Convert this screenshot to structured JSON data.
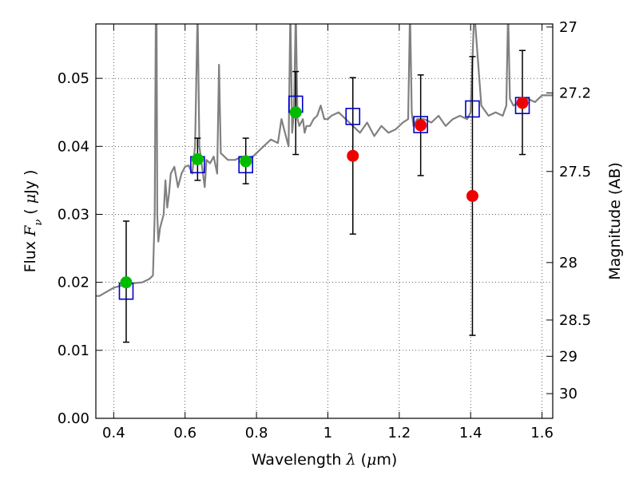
{
  "chart_data": {
    "type": "scatter",
    "title": "",
    "xlabel": {
      "pre": "Wavelength ",
      "sym": "λ",
      "mid": " (",
      "mu": "μ",
      "post": "m)"
    },
    "ylabel": {
      "pre": "Flux ",
      "sym": "F",
      "sub": "ν",
      "mid": " ( ",
      "mu": "μ",
      "post": "Jy )"
    },
    "y2label": "Magnitude (AB)",
    "xlim": [
      0.35,
      1.63
    ],
    "ylim": [
      0.0,
      0.058
    ],
    "grid": true,
    "x_ticks": [
      {
        "value": 0.4,
        "label": "0.4"
      },
      {
        "value": 0.6,
        "label": "0.6"
      },
      {
        "value": 0.8,
        "label": "0.8"
      },
      {
        "value": 1.0,
        "label": "1"
      },
      {
        "value": 1.2,
        "label": "1.2"
      },
      {
        "value": 1.4,
        "label": "1.4"
      },
      {
        "value": 1.6,
        "label": "1.6"
      }
    ],
    "y_ticks": [
      {
        "value": 0.0,
        "label": "0.00"
      },
      {
        "value": 0.01,
        "label": "0.01"
      },
      {
        "value": 0.02,
        "label": "0.02"
      },
      {
        "value": 0.03,
        "label": "0.03"
      },
      {
        "value": 0.04,
        "label": "0.04"
      },
      {
        "value": 0.05,
        "label": "0.05"
      }
    ],
    "y2_ticks": [
      {
        "mag": 27,
        "label": "27"
      },
      {
        "mag": 27.2,
        "label": "27.2"
      },
      {
        "mag": 27.5,
        "label": "27.5"
      },
      {
        "mag": 28,
        "label": "28"
      },
      {
        "mag": 28.5,
        "label": "28.5"
      },
      {
        "mag": 29,
        "label": "29"
      },
      {
        "mag": 30,
        "label": "30"
      }
    ],
    "sed_model": {
      "color": "#808080",
      "x": [
        0.35,
        0.36,
        0.38,
        0.4,
        0.42,
        0.44,
        0.46,
        0.48,
        0.5,
        0.51,
        0.515,
        0.518,
        0.52,
        0.522,
        0.525,
        0.53,
        0.54,
        0.545,
        0.55,
        0.555,
        0.56,
        0.57,
        0.58,
        0.59,
        0.6,
        0.61,
        0.62,
        0.628,
        0.635,
        0.64,
        0.65,
        0.655,
        0.66,
        0.67,
        0.68,
        0.69,
        0.695,
        0.7,
        0.72,
        0.74,
        0.76,
        0.78,
        0.8,
        0.82,
        0.84,
        0.86,
        0.87,
        0.88,
        0.89,
        0.895,
        0.9,
        0.905,
        0.91,
        0.915,
        0.92,
        0.93,
        0.935,
        0.94,
        0.95,
        0.96,
        0.97,
        0.98,
        0.99,
        1.0,
        1.01,
        1.03,
        1.05,
        1.07,
        1.09,
        1.11,
        1.13,
        1.15,
        1.17,
        1.19,
        1.21,
        1.225,
        1.23,
        1.235,
        1.24,
        1.25,
        1.27,
        1.29,
        1.31,
        1.33,
        1.35,
        1.37,
        1.39,
        1.4,
        1.41,
        1.43,
        1.45,
        1.47,
        1.49,
        1.5,
        1.505,
        1.51,
        1.52,
        1.54,
        1.56,
        1.58,
        1.6,
        1.63
      ],
      "y": [
        0.018,
        0.018,
        0.0186,
        0.0192,
        0.0195,
        0.0198,
        0.0199,
        0.02,
        0.0205,
        0.021,
        0.03,
        0.06,
        0.06,
        0.03,
        0.026,
        0.028,
        0.03,
        0.035,
        0.031,
        0.033,
        0.036,
        0.037,
        0.034,
        0.036,
        0.037,
        0.0372,
        0.036,
        0.04,
        0.06,
        0.04,
        0.036,
        0.034,
        0.038,
        0.0375,
        0.0385,
        0.036,
        0.052,
        0.039,
        0.038,
        0.038,
        0.0385,
        0.038,
        0.039,
        0.04,
        0.041,
        0.0405,
        0.044,
        0.042,
        0.04,
        0.06,
        0.042,
        0.045,
        0.06,
        0.044,
        0.043,
        0.044,
        0.042,
        0.043,
        0.043,
        0.044,
        0.0445,
        0.046,
        0.044,
        0.044,
        0.0445,
        0.045,
        0.044,
        0.043,
        0.042,
        0.0435,
        0.0415,
        0.043,
        0.042,
        0.0425,
        0.0435,
        0.044,
        0.06,
        0.045,
        0.043,
        0.044,
        0.044,
        0.0435,
        0.0445,
        0.043,
        0.044,
        0.0445,
        0.044,
        0.045,
        0.06,
        0.046,
        0.0445,
        0.045,
        0.0445,
        0.046,
        0.06,
        0.047,
        0.046,
        0.0465,
        0.047,
        0.0465,
        0.0475,
        0.0475
      ]
    },
    "series": [
      {
        "marker": "open-square",
        "color": "#0000cc",
        "x": [
          0.435,
          0.635,
          0.77,
          0.91,
          1.07,
          1.26,
          1.405,
          1.545
        ],
        "y": [
          0.0187,
          0.0373,
          0.0373,
          0.0462,
          0.0444,
          0.0432,
          0.0455,
          0.046
        ]
      },
      {
        "marker": "filled-circle",
        "color": "#00bb00",
        "x": [
          0.435,
          0.635,
          0.77,
          0.91
        ],
        "y": [
          0.02,
          0.0381,
          0.0378,
          0.045
        ],
        "y_err_low": [
          0.0112,
          0.035,
          0.0345,
          0.0388
        ],
        "y_err_high": [
          0.029,
          0.0412,
          0.0412,
          0.051
        ]
      },
      {
        "marker": "filled-circle",
        "color": "#ee0000",
        "x": [
          1.07,
          1.26,
          1.405,
          1.545
        ],
        "y": [
          0.0386,
          0.0431,
          0.0327,
          0.0464
        ],
        "y_err_low": [
          0.0271,
          0.0357,
          0.0122,
          0.0388
        ],
        "y_err_high": [
          0.0501,
          0.0505,
          0.0532,
          0.0541
        ]
      }
    ]
  }
}
